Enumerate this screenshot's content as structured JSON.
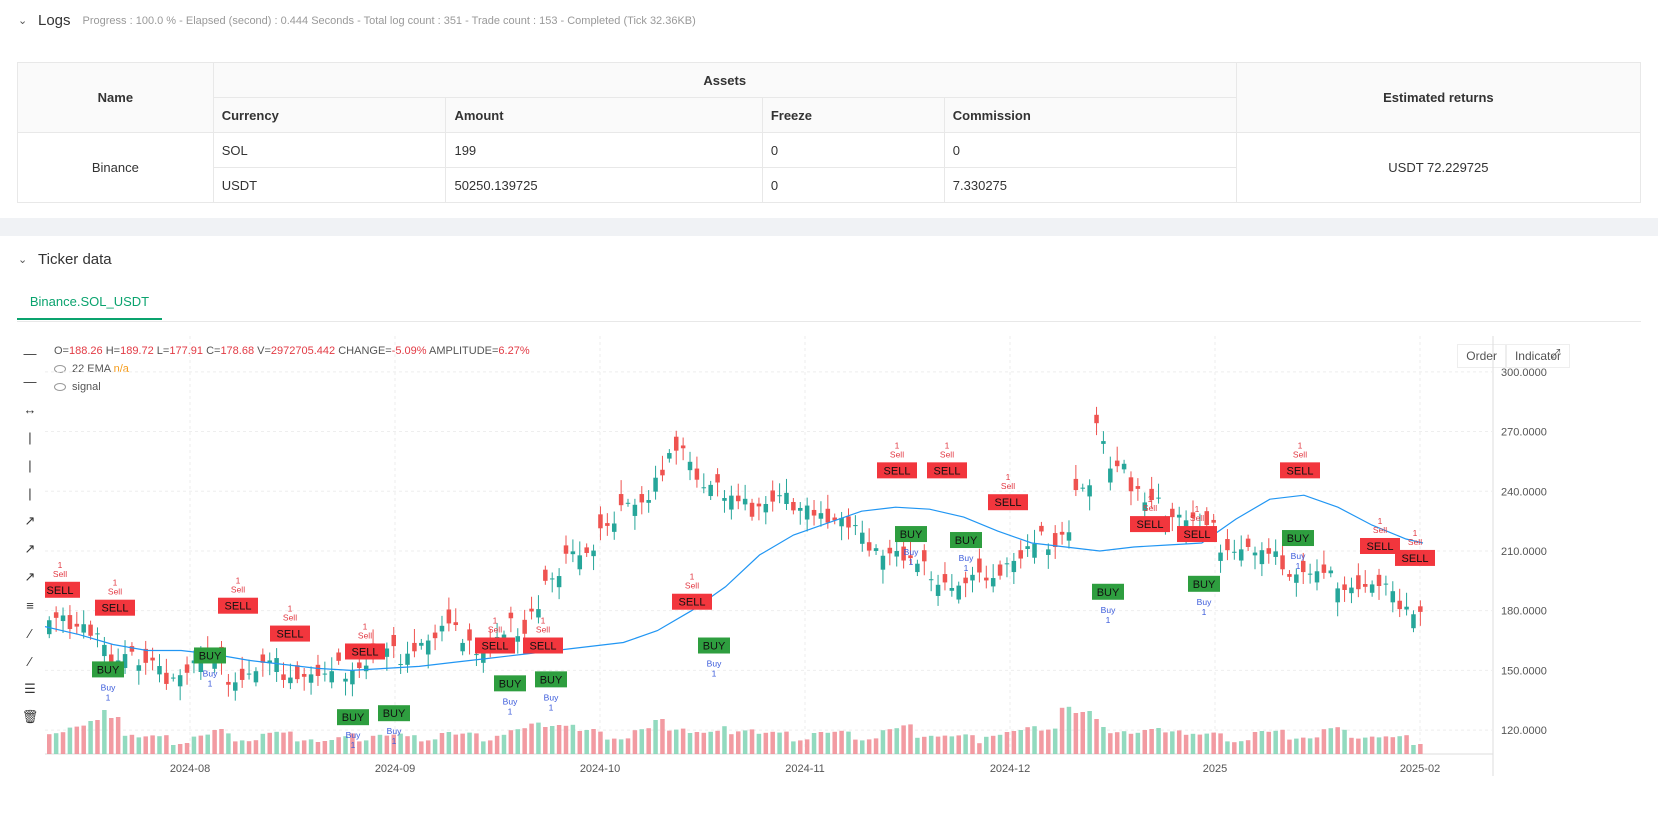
{
  "logs": {
    "title": "Logs",
    "meta": "Progress : 100.0 % - Elapsed (second) : 0.444 Seconds - Total log count : 351 - Trade count : 153 - Completed (Tick 32.36KB)"
  },
  "assets_table": {
    "headers": {
      "name": "Name",
      "assets": "Assets",
      "currency": "Currency",
      "amount": "Amount",
      "freeze": "Freeze",
      "commission": "Commission",
      "returns": "Estimated returns"
    },
    "exchange": "Binance",
    "rows": [
      {
        "currency": "SOL",
        "amount": "199",
        "freeze": "0",
        "commission": "0"
      },
      {
        "currency": "USDT",
        "amount": "50250.139725",
        "freeze": "0",
        "commission": "7.330275"
      }
    ],
    "estimated_returns": "USDT 72.229725"
  },
  "ticker": {
    "title": "Ticker data",
    "tab": "Binance.SOL_USDT",
    "ohlc": {
      "o_label": "O=",
      "o": "188.26",
      "h_label": "H=",
      "h": "189.72",
      "l_label": "L=",
      "l": "177.91",
      "c_label": "C=",
      "c": "178.68",
      "v_label": "V=",
      "v": "2972705.442",
      "change_label": "CHANGE=",
      "change": "-5.09%",
      "amp_label": "AMPLITUDE=",
      "amp": "6.27%"
    },
    "ema_label": "22 EMA",
    "ema_value": "n/a",
    "signal_label": "signal",
    "buttons": {
      "order": "Order",
      "indicator": "Indicator"
    }
  },
  "colors": {
    "up": "#26a69a",
    "down": "#ef5350",
    "ema": "#2196f3",
    "buy": "#2e9e3f",
    "sell": "#f2363d",
    "accent": "#0aa36e"
  },
  "chart_data": {
    "type": "candlestick",
    "y_ticks": [
      "300.0000",
      "270.0000",
      "240.0000",
      "210.0000",
      "180.0000",
      "150.0000",
      "120.0000"
    ],
    "x_ticks": [
      "2024-08",
      "2024-09",
      "2024-10",
      "2024-11",
      "2024-12",
      "2025",
      "2025-02"
    ],
    "ylim": [
      108,
      318
    ],
    "ema_path": [
      [
        0,
        172
      ],
      [
        10,
        168
      ],
      [
        20,
        163
      ],
      [
        30,
        160
      ],
      [
        40,
        160
      ],
      [
        50,
        158
      ],
      [
        60,
        155
      ],
      [
        70,
        153
      ],
      [
        80,
        151
      ],
      [
        90,
        150
      ],
      [
        100,
        151
      ],
      [
        110,
        152
      ],
      [
        120,
        154
      ],
      [
        130,
        156
      ],
      [
        140,
        158
      ],
      [
        150,
        160
      ],
      [
        160,
        162
      ],
      [
        170,
        164
      ],
      [
        180,
        170
      ],
      [
        190,
        180
      ],
      [
        200,
        192
      ],
      [
        210,
        208
      ],
      [
        220,
        218
      ],
      [
        230,
        224
      ],
      [
        240,
        230
      ],
      [
        250,
        232
      ],
      [
        260,
        231
      ],
      [
        270,
        227
      ],
      [
        280,
        220
      ],
      [
        290,
        214
      ],
      [
        300,
        212
      ],
      [
        310,
        210
      ],
      [
        320,
        212
      ],
      [
        330,
        213
      ],
      [
        340,
        214
      ],
      [
        350,
        226
      ],
      [
        360,
        236
      ],
      [
        370,
        238
      ],
      [
        380,
        232
      ],
      [
        390,
        223
      ],
      [
        400,
        216
      ],
      [
        405,
        214
      ]
    ],
    "closes_sample": [
      180,
      172,
      165,
      158,
      160,
      152,
      148,
      150,
      155,
      150,
      147,
      149,
      152,
      150,
      148,
      146,
      150,
      153,
      156,
      158,
      162,
      165,
      170,
      168,
      160,
      165,
      172,
      182,
      195,
      205,
      212,
      222,
      230,
      238,
      248,
      258,
      250,
      245,
      236,
      232,
      236,
      238,
      228,
      232,
      226,
      220,
      215,
      210,
      204,
      200,
      196,
      192,
      195,
      200,
      205,
      210,
      215,
      220,
      240,
      270,
      255,
      240,
      232,
      230,
      226,
      220,
      214,
      212,
      208,
      205,
      200,
      198,
      196,
      194,
      192,
      190,
      185,
      180
    ],
    "volume_sample": [
      22,
      26,
      30,
      40,
      18,
      14,
      12,
      10,
      16,
      20,
      14,
      12,
      18,
      16,
      14,
      10,
      12,
      14,
      18,
      16,
      12,
      14,
      20,
      16,
      14,
      18,
      22,
      26,
      30,
      28,
      20,
      16,
      14,
      22,
      30,
      26,
      20,
      18,
      22,
      24,
      18,
      16,
      14,
      20,
      18,
      16,
      14,
      22,
      24,
      18,
      16,
      14,
      12,
      18,
      20,
      22,
      26,
      48,
      40,
      30,
      22,
      18,
      20,
      24,
      18,
      16,
      14,
      12,
      20,
      18,
      16,
      14,
      22,
      18,
      16,
      14,
      12,
      10
    ],
    "buy_signals": [
      [
        108,
        150,
        "BUY"
      ],
      [
        210,
        157,
        "BUY"
      ],
      [
        353,
        126,
        "BUY"
      ],
      [
        394,
        128,
        "BUY"
      ],
      [
        510,
        143,
        "BUY"
      ],
      [
        551,
        145,
        "BUY"
      ],
      [
        714,
        162,
        "BUY"
      ],
      [
        911,
        218,
        "BUY"
      ],
      [
        966,
        215,
        "BUY"
      ],
      [
        1108,
        189,
        "BUY"
      ],
      [
        1204,
        193,
        "BUY"
      ],
      [
        1298,
        216,
        "BUY"
      ]
    ],
    "sell_signals": [
      [
        60,
        190,
        "SELL"
      ],
      [
        115,
        181,
        "SELL"
      ],
      [
        238,
        182,
        "SELL"
      ],
      [
        290,
        168,
        "SELL"
      ],
      [
        365,
        159,
        "SELL"
      ],
      [
        495,
        162,
        "SELL"
      ],
      [
        543,
        162,
        "SELL"
      ],
      [
        692,
        184,
        "SELL"
      ],
      [
        897,
        250,
        "SELL"
      ],
      [
        947,
        250,
        "SELL"
      ],
      [
        1008,
        234,
        "SELL"
      ],
      [
        1150,
        223,
        "SELL"
      ],
      [
        1197,
        218,
        "SELL"
      ],
      [
        1300,
        250,
        "SELL"
      ],
      [
        1380,
        212,
        "SELL"
      ],
      [
        1415,
        206,
        "SELL"
      ]
    ],
    "signal_labels": {
      "buy": "Buy",
      "sell": "Sell",
      "count": "1"
    }
  }
}
